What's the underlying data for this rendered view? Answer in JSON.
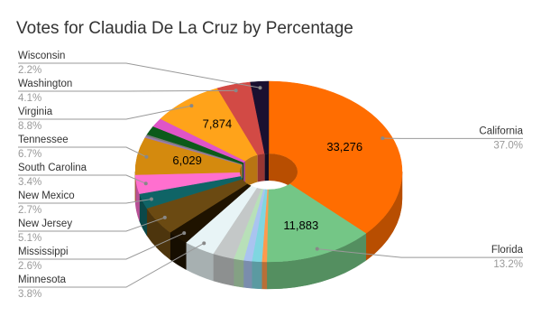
{
  "chart_data": {
    "type": "pie",
    "donut": true,
    "three_d": true,
    "title": "Votes for Claudia De La Cruz by Percentage",
    "categories": [
      "California",
      "Florida",
      null,
      null,
      null,
      null,
      null,
      "Minnesota",
      "Mississippi",
      "New Jersey",
      "New Mexico",
      "South Carolina",
      "Tennessee",
      null,
      null,
      null,
      null,
      "Virginia",
      "Washington",
      "Wisconsin"
    ],
    "values": [
      33276,
      11883,
      540,
      1079,
      899,
      1079,
      2338,
      3418,
      2338,
      4587,
      2428,
      3058,
      6029,
      270,
      270,
      1439,
      1439,
      7874,
      3687,
      1979
    ],
    "value_labels": [
      "33,276",
      "11,883",
      null,
      null,
      null,
      null,
      null,
      null,
      null,
      null,
      null,
      null,
      "6,029",
      null,
      null,
      null,
      null,
      "7,874",
      null,
      null
    ],
    "percent_labels": [
      "37.0%",
      "13.2%",
      null,
      null,
      null,
      null,
      null,
      "3.8%",
      "2.6%",
      "5.1%",
      "2.7%",
      "3.4%",
      "6.7%",
      null,
      null,
      null,
      null,
      "8.8%",
      "4.1%",
      "2.2%"
    ],
    "colors": [
      "#ff6d01",
      "#74c686",
      "#ff9a4d",
      "#7fd6e0",
      "#aac4f0",
      "#b8e0b8",
      "#c4c8c8",
      "#e8f4f6",
      "#1f1300",
      "#6b4a12",
      "#0f6466",
      "#ff6fcf",
      "#d48a0e",
      "#9a7ab0",
      "#7a7a7a",
      "#0b5a1a",
      "#e054c8",
      "#ffa31a",
      "#d24a45",
      "#1a1030"
    ]
  }
}
